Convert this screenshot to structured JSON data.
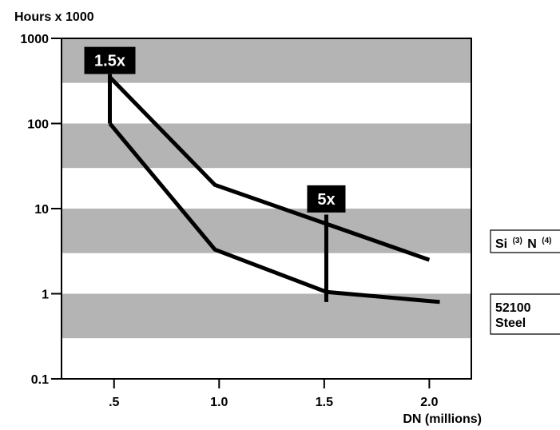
{
  "chart_data": {
    "type": "line",
    "ylabel": "Hours x 1000",
    "xlabel": "DN (millions)",
    "y_scale": "log",
    "ylim": [
      0.1,
      1000
    ],
    "xlim": [
      0.25,
      2.2
    ],
    "y_ticks": [
      {
        "value": 1000,
        "label": "1000"
      },
      {
        "value": 100,
        "label": "100"
      },
      {
        "value": 10,
        "label": "10"
      },
      {
        "value": 1,
        "label": "1"
      },
      {
        "value": 0.1,
        "label": "0.1"
      }
    ],
    "x_ticks": [
      {
        "value": 0.5,
        "label": ".5"
      },
      {
        "value": 1.0,
        "label": "1.0"
      },
      {
        "value": 1.5,
        "label": "1.5"
      },
      {
        "value": 2.0,
        "label": "2.0"
      }
    ],
    "bands": [
      {
        "from": 300,
        "to": 1000
      },
      {
        "from": 30,
        "to": 100
      },
      {
        "from": 3,
        "to": 10
      },
      {
        "from": 0.3,
        "to": 1
      }
    ],
    "band_color": "#b4b4b4",
    "line_color": "#000000",
    "series": [
      {
        "x": [
          0.48,
          0.98,
          2.0
        ],
        "y": [
          350,
          19,
          2.5
        ]
      },
      {
        "x": [
          0.48,
          0.98,
          1.51,
          2.05
        ],
        "y": [
          100,
          3.3,
          1.05,
          0.8
        ]
      }
    ],
    "ranges": [
      {
        "x": 0.48,
        "y_from": 100,
        "y_to": 380
      },
      {
        "x": 1.51,
        "y_from": 0.8,
        "y_to": 8.5
      }
    ],
    "annotations": [
      {
        "text": "1.5x",
        "x": 0.48,
        "y": 550
      },
      {
        "text": "5x",
        "x": 1.51,
        "y": 13
      }
    ],
    "legend": [
      {
        "text": "Si",
        "sub1": "(3)",
        "mid": "N",
        "sub2": "(4)"
      },
      {
        "line1": "52100",
        "line2": "Steel"
      }
    ]
  }
}
